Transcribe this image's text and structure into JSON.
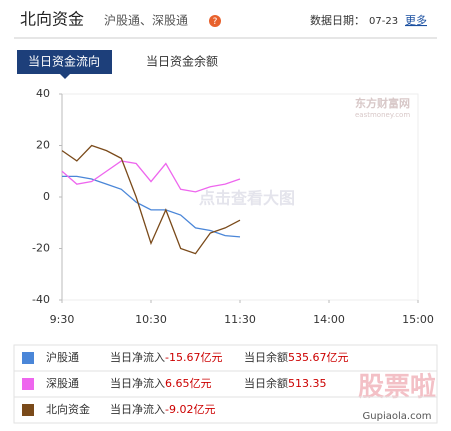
{
  "header": {
    "title": "北向资金",
    "subtitle": "沪股通、深股通",
    "date_label": "数据日期：",
    "date": "07-23",
    "more": "更多"
  },
  "tabs": [
    "当日资金流向",
    "当日资金余额"
  ],
  "watermarks": [
    "东方财富网",
    "eastmoney.com",
    "点击查看大图",
    "股票啦",
    "Gupiaola.com"
  ],
  "chart_data": {
    "type": "line",
    "x": [
      0,
      10,
      20,
      30,
      40,
      50,
      60,
      70,
      80,
      90,
      100,
      110,
      120
    ],
    "xlim": [
      0,
      240
    ],
    "xticks": [
      {
        "value": 0,
        "label": "9:30"
      },
      {
        "value": 60,
        "label": "10:30"
      },
      {
        "value": 120,
        "label": "11:30"
      },
      {
        "value": 180,
        "label": "14:00"
      },
      {
        "value": 240,
        "label": "15:00"
      }
    ],
    "ylim": [
      -40,
      40
    ],
    "yticks": [
      -40,
      -20,
      0,
      20,
      40
    ],
    "grid": false,
    "series": [
      {
        "name": "沪股通",
        "color": "#4a86d8",
        "values": [
          8,
          8,
          7,
          5,
          3,
          -2,
          -5,
          -5,
          -7,
          -12,
          -13,
          -15,
          -15.5
        ]
      },
      {
        "name": "深股通",
        "color": "#ee66ee",
        "values": [
          10,
          5,
          6,
          10,
          14,
          13,
          6,
          13,
          3,
          2,
          4,
          5,
          7
        ]
      },
      {
        "name": "北向资金",
        "color": "#7a4a1a",
        "values": [
          18,
          14,
          20,
          18,
          15,
          0,
          -18,
          -5,
          -20,
          -22,
          -14,
          -12,
          -9
        ]
      }
    ],
    "summary": [
      {
        "flow_label": "当日净流入",
        "flow": -15.67,
        "flow_unit": "亿元",
        "balance_label": "当日余额",
        "balance": 535.67,
        "balance_unit": "亿元"
      },
      {
        "flow_label": "当日净流入",
        "flow": 6.65,
        "flow_unit": "亿元",
        "balance_label": "当日余额",
        "balance": 513.35
      },
      {
        "flow_label": "当日净流入",
        "flow": -9.02,
        "flow_unit": "亿元"
      }
    ]
  }
}
